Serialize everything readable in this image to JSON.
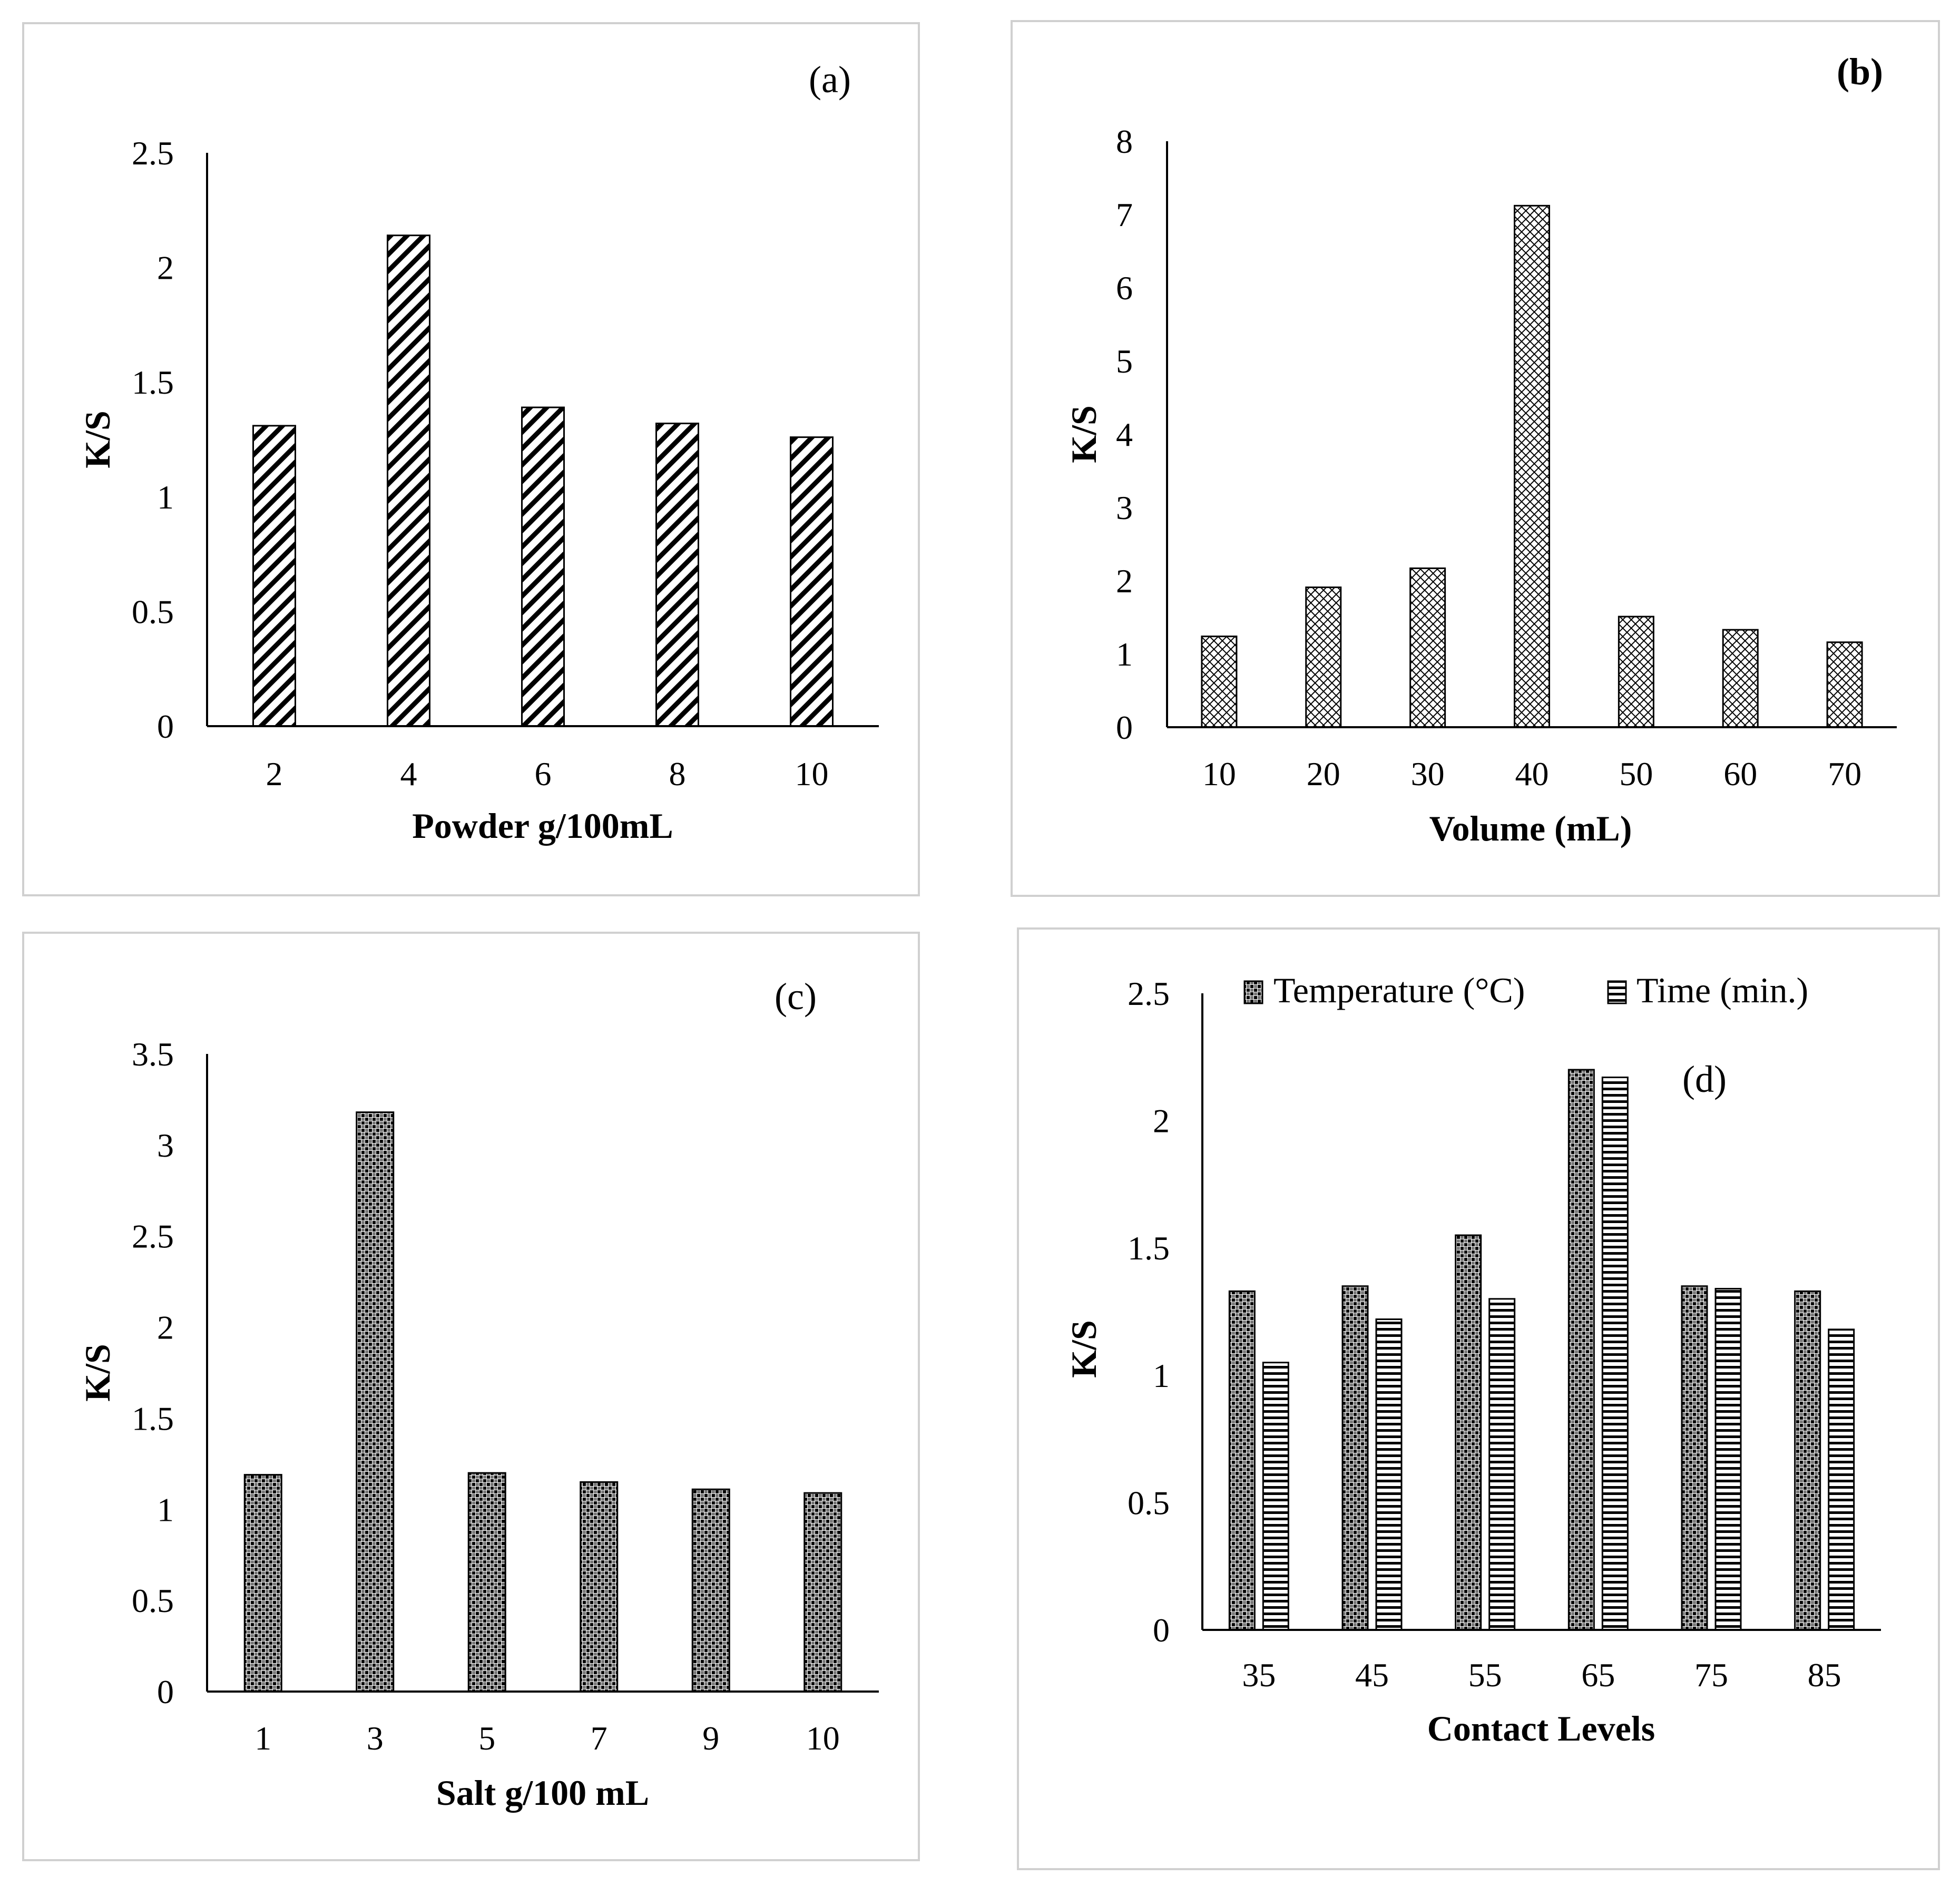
{
  "colors": {
    "frame": "#d0d0d0",
    "ink": "#000000",
    "background": "#ffffff"
  },
  "chart_data": [
    {
      "id": "a",
      "type": "bar",
      "panel_label": "(a)",
      "categories": [
        "2",
        "4",
        "6",
        "8",
        "10"
      ],
      "values": [
        1.31,
        2.14,
        1.39,
        1.32,
        1.26
      ],
      "xlabel": "Powder g/100mL",
      "ylabel": "K/S",
      "ylim": [
        0,
        2.5
      ],
      "yticks": [
        "0",
        "0.5",
        "1",
        "1.5",
        "2",
        "2.5"
      ],
      "grid": false,
      "pattern": "diagonal-hatch"
    },
    {
      "id": "b",
      "type": "bar",
      "panel_label": "(b)",
      "categories": [
        "10",
        "20",
        "30",
        "40",
        "50",
        "60",
        "70"
      ],
      "values": [
        1.24,
        1.91,
        2.17,
        7.12,
        1.51,
        1.33,
        1.16
      ],
      "xlabel": "Volume (mL)",
      "ylabel": "K/S",
      "ylim": [
        0,
        8
      ],
      "yticks": [
        "0",
        "1",
        "2",
        "3",
        "4",
        "5",
        "6",
        "7",
        "8"
      ],
      "grid": false,
      "pattern": "crosshatch"
    },
    {
      "id": "c",
      "type": "bar",
      "panel_label": "(c)",
      "categories": [
        "1",
        "3",
        "5",
        "7",
        "9",
        "10"
      ],
      "values": [
        1.19,
        3.18,
        1.2,
        1.15,
        1.11,
        1.09
      ],
      "xlabel": "Salt g/100 mL",
      "ylabel": "K/S",
      "ylim": [
        0,
        3.5
      ],
      "yticks": [
        "0",
        "0.5",
        "1",
        "1.5",
        "2",
        "2.5",
        "3",
        "3.5"
      ],
      "grid": false,
      "pattern": "checker"
    },
    {
      "id": "d",
      "type": "bar",
      "panel_label": "(d)",
      "categories": [
        "35",
        "45",
        "55",
        "65",
        "75",
        "85"
      ],
      "series": [
        {
          "name": "Temperature (°C)",
          "values": [
            1.33,
            1.35,
            1.55,
            2.2,
            1.35,
            1.33
          ],
          "pattern": "checker"
        },
        {
          "name": "Time (min.)",
          "values": [
            1.05,
            1.22,
            1.3,
            2.17,
            1.34,
            1.18
          ],
          "pattern": "horizontal-lines"
        }
      ],
      "xlabel": "Contact Levels",
      "ylabel": "K/S",
      "ylim": [
        0,
        2.5
      ],
      "yticks": [
        "0",
        "0.5",
        "1",
        "1.5",
        "2",
        "2.5"
      ],
      "grid": false,
      "legend": "top"
    }
  ]
}
